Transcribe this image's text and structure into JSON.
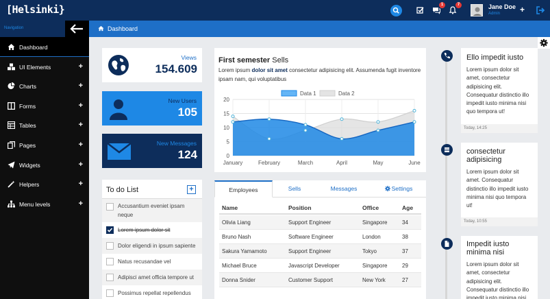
{
  "app": {
    "logo": "[Helsinki}",
    "user_name": "Jane Doe",
    "user_role": "Admin",
    "notifications": [
      {
        "icon": "check-square-icon",
        "badge": ""
      },
      {
        "icon": "comments-icon",
        "badge": "1"
      },
      {
        "icon": "bell-icon",
        "badge": "7"
      }
    ]
  },
  "sidebar": {
    "nav_label": "Navigation",
    "items": [
      {
        "label": "Dashboard",
        "icon": "home-icon",
        "expandable": false,
        "active": true
      },
      {
        "label": "UI Elements",
        "icon": "cubes-icon",
        "expandable": true
      },
      {
        "label": "Charts",
        "icon": "pie-chart-icon",
        "expandable": true
      },
      {
        "label": "Forms",
        "icon": "columns-icon",
        "expandable": true
      },
      {
        "label": "Tables",
        "icon": "table-icon",
        "expandable": true
      },
      {
        "label": "Pages",
        "icon": "files-icon",
        "expandable": true
      },
      {
        "label": "Widgets",
        "icon": "paper-plane-icon",
        "expandable": true
      },
      {
        "label": "Helpers",
        "icon": "magic-icon",
        "expandable": true
      },
      {
        "label": "Menu levels",
        "icon": "sitemap-icon",
        "expandable": true
      }
    ]
  },
  "breadcrumb": {
    "label": "Dashboard"
  },
  "stats": [
    {
      "label": "Views",
      "value": "154.609",
      "bg": "#ffffff",
      "fg": "#0d2d5b",
      "label_color": "#1e6fc7"
    },
    {
      "label": "New Users",
      "value": "105",
      "bg": "#1e88e5",
      "fg": "#ffffff",
      "label_color": "#0d2d5b"
    },
    {
      "label": "New Messages",
      "value": "124",
      "bg": "#0d2d5b",
      "fg": "#ffffff",
      "label_color": "#1e88e5"
    }
  ],
  "todo": {
    "title": "To do List",
    "items": [
      {
        "text": "Accusantium eveniet ipsam neque",
        "done": false
      },
      {
        "text": "Lorem ipsum dolor sit",
        "done": true
      },
      {
        "text": "Dolor eligendi in ipsum sapiente",
        "done": false
      },
      {
        "text": "Natus recusandae vel",
        "done": false
      },
      {
        "text": "Adipisci amet officia tempore ut",
        "done": false
      },
      {
        "text": "Possimus repellat repellendus",
        "done": false
      }
    ]
  },
  "chart": {
    "title_bold": "First semester",
    "title_rest": "Sells",
    "desc_pre": "Lorem ipsum ",
    "desc_hl": "dolor sit amet",
    "desc_post": " consectetur adipisicing elit. Assumenda fugit inventore ipsam nam, qui voluptatibus"
  },
  "chart_data": {
    "type": "area",
    "categories": [
      "January",
      "February",
      "March",
      "April",
      "May",
      "June"
    ],
    "series": [
      {
        "name": "Data 1",
        "values": [
          12,
          13,
          11,
          6,
          9,
          12
        ],
        "color": "#1e88e5"
      },
      {
        "name": "Data 2",
        "values": [
          14,
          6,
          9,
          13,
          12,
          16
        ],
        "color": "#cccccc"
      }
    ],
    "ylim": [
      0,
      20
    ],
    "yticks": [
      0,
      5,
      10,
      15,
      20
    ],
    "legend": "top",
    "grid": true,
    "xlabel": "",
    "ylabel": ""
  },
  "table": {
    "tabs": [
      {
        "label": "Employees",
        "active": true,
        "icon": ""
      },
      {
        "label": "Sells",
        "active": false,
        "icon": ""
      },
      {
        "label": "Messages",
        "active": false,
        "icon": ""
      },
      {
        "label": "Settings",
        "active": false,
        "icon": "gear-icon"
      }
    ],
    "columns": [
      "Name",
      "Position",
      "Office",
      "Age"
    ],
    "rows": [
      [
        "Olivia Liang",
        "Support Engineer",
        "Singapore",
        "34"
      ],
      [
        "Bruno Nash",
        "Software Engineer",
        "London",
        "38"
      ],
      [
        "Sakura Yamamoto",
        "Support Engineer",
        "Tokyo",
        "37"
      ],
      [
        "Michael Bruce",
        "Javascript Developer",
        "Singapore",
        "29"
      ],
      [
        "Donna Snider",
        "Customer Support",
        "New York",
        "27"
      ]
    ]
  },
  "timeline": [
    {
      "title": "Ello impedit iusto",
      "icon": "phone-icon",
      "body": "Lorem ipsum dolor sit amet, consectetur adipisicing elit. Consequatur distinctio illo impedit iusto minima nisi quo tempora ut!",
      "time": "Today, 14:25"
    },
    {
      "title": "consectetur adipisicing",
      "icon": "list-icon",
      "body": "Lorem ipsum dolor sit amet. Consequatur distinctio illo impedit iusto minima nisi quo tempora ut!",
      "time": "Today, 10:55"
    },
    {
      "title": "Impedit iusto minima nisi",
      "icon": "file-icon",
      "body": "Lorem ipsum dolor sit amet, consectetur adipisicing elit. Consequatur distinctio illo impedit iusto minima nisi quo tempora ut!",
      "time": ""
    }
  ]
}
